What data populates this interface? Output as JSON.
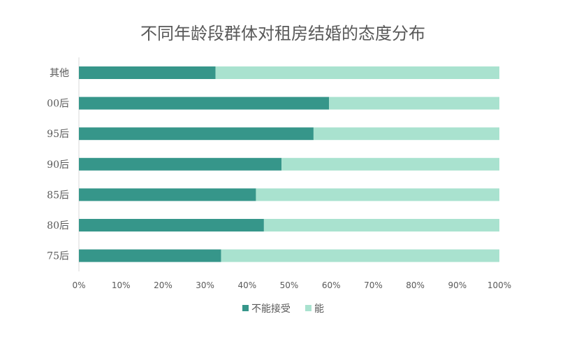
{
  "chart_data": {
    "type": "bar",
    "orientation": "horizontal",
    "stacked": true,
    "title": "不同年龄段群体对租房结婚的态度分布",
    "categories": [
      "其他",
      "00后",
      "95后",
      "90后",
      "85后",
      "80后",
      "75后"
    ],
    "series": [
      {
        "name": "不能接受",
        "color": "#36968a",
        "values": [
          0.325,
          0.595,
          0.558,
          0.482,
          0.421,
          0.44,
          0.338
        ]
      },
      {
        "name": "能",
        "color": "#a9e2cf",
        "values": [
          0.675,
          0.405,
          0.442,
          0.518,
          0.579,
          0.56,
          0.662
        ]
      }
    ],
    "x_ticks": [
      "0%",
      "10%",
      "20%",
      "30%",
      "40%",
      "50%",
      "60%",
      "70%",
      "80%",
      "90%",
      "100%"
    ],
    "xlim": [
      0,
      1
    ],
    "xlabel": "",
    "ylabel": "",
    "grid": false,
    "legend_position": "bottom"
  }
}
